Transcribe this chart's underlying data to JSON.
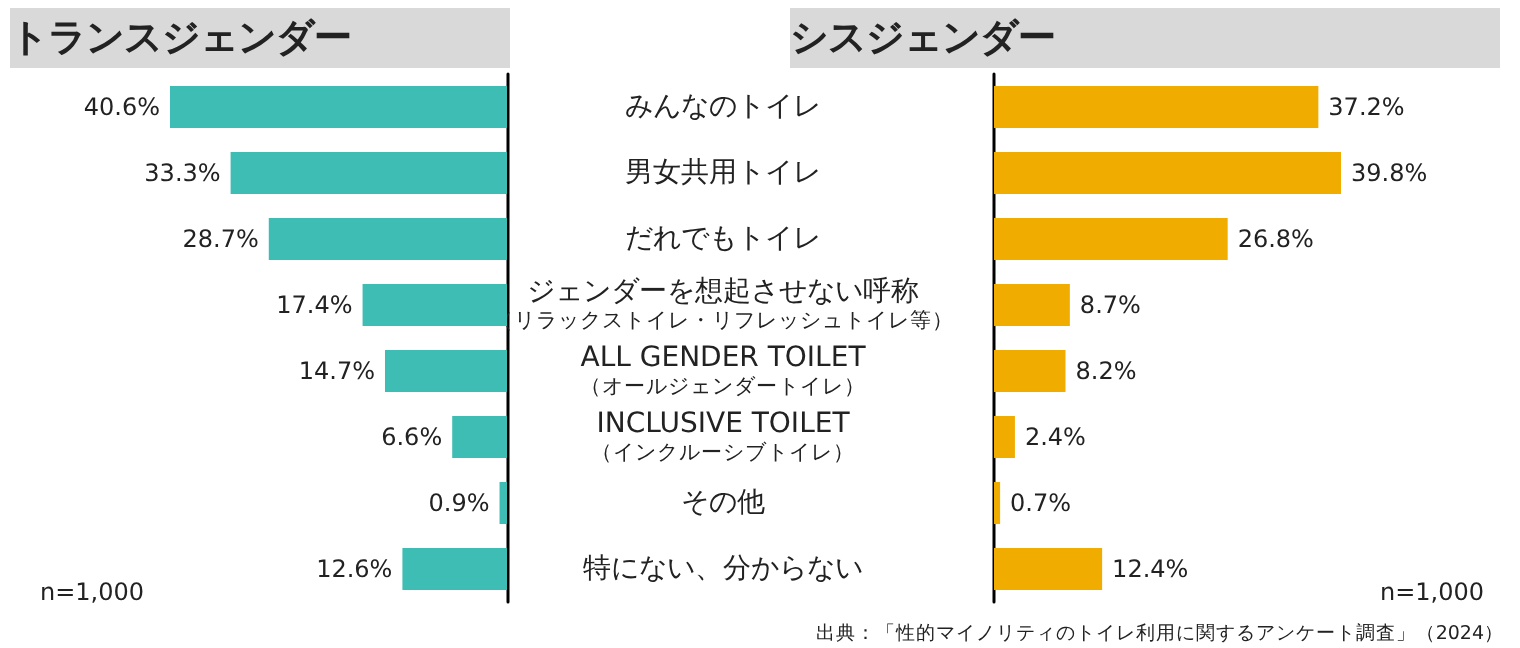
{
  "chart_data": [
    {
      "type": "bar",
      "orientation": "horizontal",
      "title": "トランスジェンダー",
      "categories": [
        "みんなのトイレ",
        "男女共用トイレ",
        "だれでもトイレ",
        "ジェンダーを想起させない呼称（リラックストイレ・リフレッシュトイレ等）",
        "ALL GENDER TOILET（オールジェンダートイレ）",
        "INCLUSIVE TOILET（インクルーシブトイレ）",
        "その他",
        "特にない、分からない"
      ],
      "series": [
        {
          "color": "#3dbdb3",
          "values": [
            40.6,
            33.3,
            28.7,
            17.4,
            14.7,
            6.6,
            0.9,
            12.6
          ],
          "value_labels": [
            "40.6%",
            "33.3%",
            "28.7%",
            "17.4%",
            "14.7%",
            "6.6%",
            "0.9%",
            "12.6%"
          ]
        }
      ],
      "annotations": [
        "n=1,000"
      ]
    },
    {
      "type": "bar",
      "orientation": "horizontal",
      "title": "シスジェンダー",
      "categories": [
        null,
        null,
        null,
        null,
        null,
        null,
        null,
        null
      ],
      "series": [
        {
          "color": "#f0ad00",
          "values": [
            37.2,
            39.8,
            26.8,
            8.7,
            8.2,
            2.4,
            0.7,
            12.4
          ],
          "value_labels": [
            "37.2%",
            "39.8%",
            "26.8%",
            "8.7%",
            "8.2%",
            "2.4%",
            "0.7%",
            "12.4%"
          ]
        }
      ],
      "tick_labels": false,
      "annotations": [
        "n=1,000",
        "出典：「性的マイノリティのトイレ利用に関するアンケート調査」（2024）"
      ]
    }
  ]
}
